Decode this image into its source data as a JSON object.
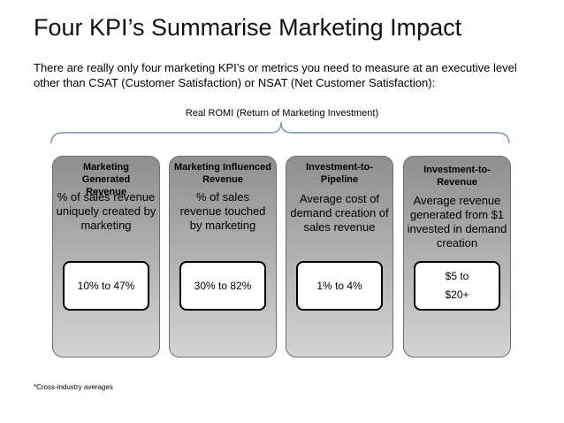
{
  "title": "Four KPI’s Summarise Marketing Impact",
  "intro": "There are really only four marketing KPI’s or metrics you need to measure at an executive level other than CSAT (Customer Satisfaction) or NSAT (Net Customer Satisfaction):",
  "brace_label": "Real ROMI (Return of Marketing Investment)",
  "kpis": [
    {
      "title": "Marketing Generated Revenue",
      "description": "% of sales revenue uniquely created by marketing",
      "value": "10% to 47%"
    },
    {
      "title": "Marketing Influenced Revenue",
      "description": "% of sales revenue touched by marketing",
      "value": "30% to 82%"
    },
    {
      "title": "Investment-to-Pipeline",
      "description": "Average cost of demand creation of sales revenue",
      "value": "1% to 4%"
    },
    {
      "title": "Investment-to-Revenue",
      "description": "Average revenue generated from $1 invested in demand creation",
      "value": "$5 to $20+"
    }
  ],
  "footnote": "*Cross-industry averages"
}
